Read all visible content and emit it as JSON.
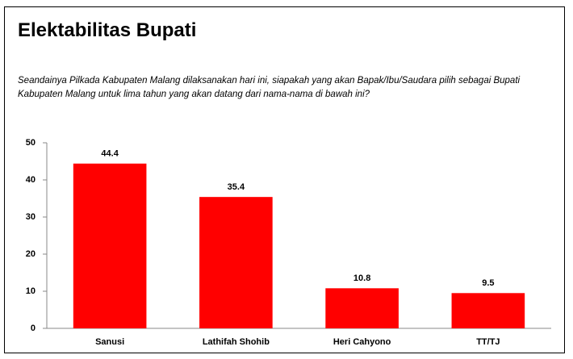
{
  "chart_data": {
    "type": "bar",
    "title": "Elektabilitas Bupati",
    "subtitle": "Seandainya Pilkada Kabupaten Malang dilaksanakan hari ini, siapakah yang akan Bapak/Ibu/Saudara pilih sebagai Bupati Kabupaten Malang untuk lima tahun yang akan datang dari nama-nama di bawah ini?",
    "categories": [
      "Sanusi",
      "Lathifah Shohib",
      "Heri Cahyono",
      "TT/TJ"
    ],
    "values": [
      44.4,
      35.4,
      10.8,
      9.5
    ],
    "color": "#ff0000",
    "ylim": [
      0,
      50
    ],
    "yticks": [
      0,
      10,
      20,
      30,
      40,
      50
    ],
    "grid": false
  }
}
